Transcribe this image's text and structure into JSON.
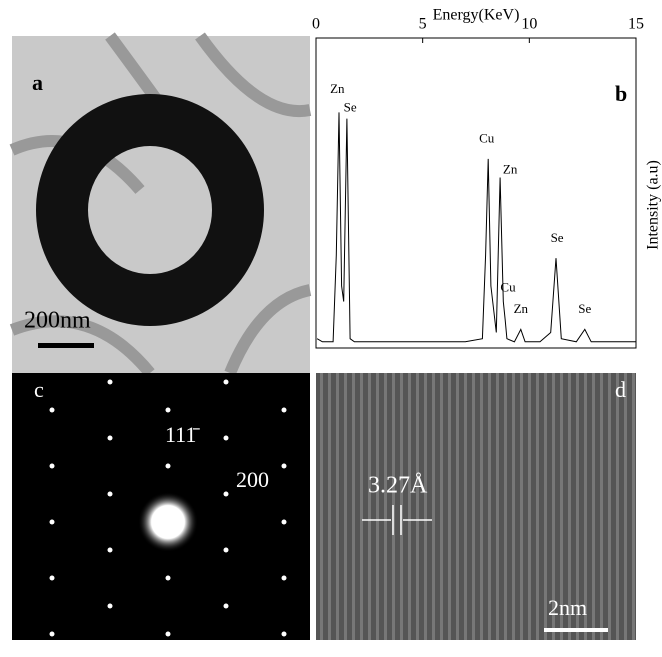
{
  "panels": {
    "a": {
      "label": "a",
      "scale_bar": "200nm"
    },
    "c": {
      "label": "c",
      "spots": [
        "111̄",
        "200"
      ]
    },
    "d": {
      "label": "d",
      "spacing": "3.27Å",
      "scale_bar": "2nm"
    }
  },
  "chart_data": {
    "type": "line",
    "label": "b",
    "x_label": "Energy(KeV)",
    "y_label": "Intensity (a.u)",
    "xlim": [
      0,
      15
    ],
    "xticks": [
      0,
      5,
      10,
      15
    ],
    "ylim": [
      0,
      100
    ],
    "color": "#000000",
    "x": [
      0.05,
      0.3,
      0.8,
      0.95,
      1.08,
      1.2,
      1.3,
      1.45,
      1.6,
      1.8,
      3,
      5,
      7,
      7.8,
      7.95,
      8.07,
      8.2,
      8.45,
      8.63,
      8.78,
      8.87,
      8.95,
      9.3,
      9.6,
      9.8,
      10.5,
      11.0,
      11.25,
      11.5,
      12.2,
      12.6,
      12.9,
      14,
      15
    ],
    "series": [
      {
        "values": [
          3,
          2,
          2,
          30,
          76,
          20,
          15,
          74,
          3,
          2,
          2,
          2,
          2,
          3,
          30,
          61,
          20,
          5,
          55,
          15,
          9,
          3,
          2,
          6,
          2,
          2,
          5,
          29,
          3,
          2,
          6,
          2,
          2,
          2
        ]
      }
    ],
    "annotations": [
      {
        "text": "Zn",
        "x": 1.0,
        "y": 80
      },
      {
        "text": "Se",
        "x": 1.6,
        "y": 74
      },
      {
        "text": "Cu",
        "x": 8.0,
        "y": 64
      },
      {
        "text": "Zn",
        "x": 9.1,
        "y": 54
      },
      {
        "text": "Cu",
        "x": 9.0,
        "y": 16
      },
      {
        "text": "Zn",
        "x": 9.6,
        "y": 9
      },
      {
        "text": "Se",
        "x": 11.3,
        "y": 32
      },
      {
        "text": "Se",
        "x": 12.6,
        "y": 9
      }
    ]
  }
}
